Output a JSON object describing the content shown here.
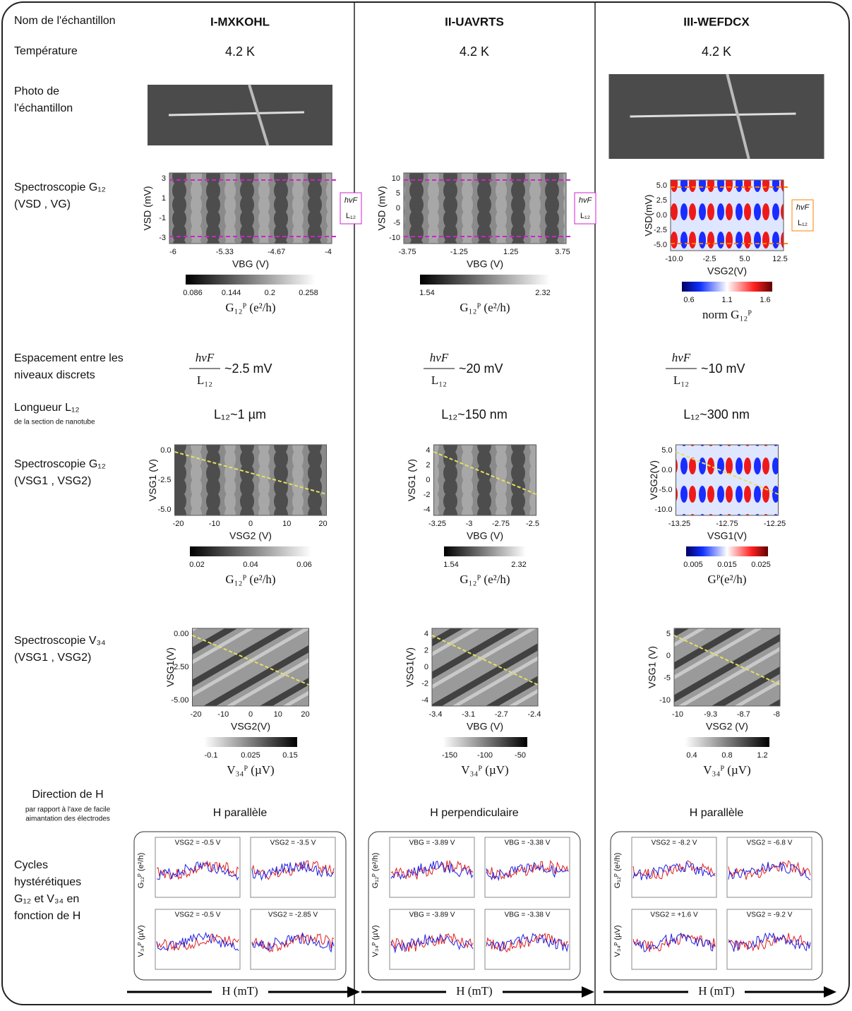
{
  "row_labels": [
    [
      "Nom de l'échantillon"
    ],
    [
      "Température"
    ],
    [
      "Photo de",
      "l'échantillon"
    ],
    [
      "Spectroscopie G₁₂",
      "(VSD , VG)"
    ],
    [
      "Espacement entre les",
      "niveaux discrets"
    ],
    [
      "Longueur  L₁₂",
      "de la section de nanotube"
    ],
    [
      "Spectroscopie G₁₂",
      "(VSG1 , VSG2)"
    ],
    [
      "Spectroscopie V₃₄",
      "(VSG1 , VSG2)"
    ],
    [
      "Direction de H",
      "par rapport à l'axe de facile",
      "aimantation des électrodes"
    ],
    [
      "Cycles",
      "hystérétiques",
      "G₁₂ et V₃₄ en",
      "fonction de H"
    ]
  ],
  "level_formula": {
    "numerator": "hvF",
    "denominator": "L₁₂"
  },
  "cycle_labels": {
    "g12": "G₁₂ᴾ (e²/h)",
    "v34": "V₃₄ᴾ (µV)",
    "h": "H (mT)"
  },
  "samples": [
    {
      "name": "I-MXKOHL",
      "temperature": "4.2 K",
      "photo": true,
      "g12_sd": {
        "cmap": "gray",
        "ylabel": "VSD (mV)",
        "yticks": [
          "3",
          "1",
          "-1",
          "-3"
        ],
        "xticks": [
          "-6",
          "-5.33",
          "-4.67",
          "-4"
        ],
        "xlabel": "VBG (V)",
        "cbar_ticks": [
          "0.086",
          "0.144",
          "0.2",
          "0.258"
        ],
        "cbar_label": "G₁₂ᴾ (e²/h)"
      },
      "spacing": "~2.5 mV",
      "length": "L₁₂~1 µm",
      "g12_sg": {
        "cmap": "gray",
        "ylabel": "VSG1 (V)",
        "yticks": [
          "0.0",
          "-2.5",
          "-5.0"
        ],
        "xticks": [
          "-20",
          "-10",
          "0",
          "10",
          "20"
        ],
        "xlabel": "VSG2 (V)",
        "cbar_ticks": [
          "0.02",
          "0.04",
          "0.06"
        ],
        "cbar_label": "G₁₂ᴾ (e²/h)"
      },
      "v34": {
        "cmap": "gray_r",
        "ylabel": "VSG1(V)",
        "yticks": [
          "0.00",
          "-2.50",
          "-5.00"
        ],
        "xticks": [
          "-20",
          "-10",
          "0",
          "10",
          "20"
        ],
        "xlabel": "VSG2(V)",
        "cbar_ticks": [
          "-0.1",
          "0.025",
          "0.15"
        ],
        "cbar_label": "V₃₄ᴾ (µV)"
      },
      "h_direction": "H parallèle",
      "cycles": [
        "VSG2 = -0.5 V",
        "VSG2 = -3.5 V",
        "VSG2 = -0.5 V",
        "VSG2 = -2.85 V"
      ]
    },
    {
      "name": "II-UAVRTS",
      "temperature": "4.2 K",
      "photo": false,
      "g12_sd": {
        "cmap": "gray",
        "ylabel": "VSD (mV)",
        "yticks": [
          "10",
          "5",
          "0",
          "-5",
          "-10"
        ],
        "xticks": [
          "-3.75",
          "-1.25",
          "1.25",
          "3.75"
        ],
        "xlabel": "VBG (V)",
        "cbar_ticks": [
          "1.54",
          "2.32"
        ],
        "cbar_label": "G₁₂ᴾ (e²/h)"
      },
      "spacing": "~20 mV",
      "length": "L₁₂~150 nm",
      "g12_sg": {
        "cmap": "gray",
        "ylabel": "VSG1 (V)",
        "yticks": [
          "4",
          "2",
          "0",
          "-2",
          "-4"
        ],
        "xticks": [
          "-3.25",
          "-3",
          "-2.75",
          "-2.5"
        ],
        "xlabel": "VBG (V)",
        "cbar_ticks": [
          "1.54",
          "2.32"
        ],
        "cbar_label": "G₁₂ᴾ (e²/h)"
      },
      "v34": {
        "cmap": "gray_r",
        "ylabel": "VSG1(V)",
        "yticks": [
          "4",
          "2",
          "0",
          "-2",
          "-4"
        ],
        "xticks": [
          "-3.4",
          "-3.1",
          "-2.7",
          "-2.4"
        ],
        "xlabel": "VBG (V)",
        "cbar_ticks": [
          "-150",
          "-100",
          "-50"
        ],
        "cbar_label": "V₃₄ᴾ (µV)"
      },
      "h_direction": "H perpendiculaire",
      "cycles": [
        "VBG = -3.89 V",
        "VBG = -3.38 V",
        "VBG = -3.89 V",
        "VBG = -3.38 V"
      ]
    },
    {
      "name": "III-WEFDCX",
      "temperature": "4.2 K",
      "photo": true,
      "g12_sd": {
        "cmap": "bwr",
        "ylabel": "VSD(mV)",
        "yticks": [
          "5.0",
          "2.5",
          "0.0",
          "-2.5",
          "-5.0"
        ],
        "xticks": [
          "-10.0",
          "-2.5",
          "5.0",
          "12.5"
        ],
        "xlabel": "VSG2(V)",
        "cbar_ticks": [
          "0.6",
          "1.1",
          "1.6"
        ],
        "cbar_label": "norm G₁₂ᴾ"
      },
      "spacing": "~10 mV",
      "length": "L₁₂~300 nm",
      "g12_sg": {
        "cmap": "bwr",
        "ylabel": "VSG2(V)",
        "yticks": [
          "5.0",
          "0.0",
          "-5.0",
          "-10.0"
        ],
        "xticks": [
          "-13.25",
          "-12.75",
          "-12.25"
        ],
        "xlabel": "VSG1(V)",
        "cbar_ticks": [
          "0.005",
          "0.015",
          "0.025"
        ],
        "cbar_label": "Gᴾ(e²/h)"
      },
      "v34": {
        "cmap": "gray_r",
        "ylabel": "VSG1 (V)",
        "yticks": [
          "5",
          "0",
          "-5",
          "-10"
        ],
        "xticks": [
          "-10",
          "-9.3",
          "-8.7",
          "-8"
        ],
        "xlabel": "VSG2 (V)",
        "cbar_ticks": [
          "0.4",
          "0.8",
          "1.2"
        ],
        "cbar_label": "V₃₄ᴾ (µV)"
      },
      "h_direction": "H parallèle",
      "cycles": [
        "VSG2 = -8.2 V",
        "VSG2 = -6.8 V",
        "VSG2 = +1.6 V",
        "VSG2 = -9.2 V"
      ]
    }
  ]
}
